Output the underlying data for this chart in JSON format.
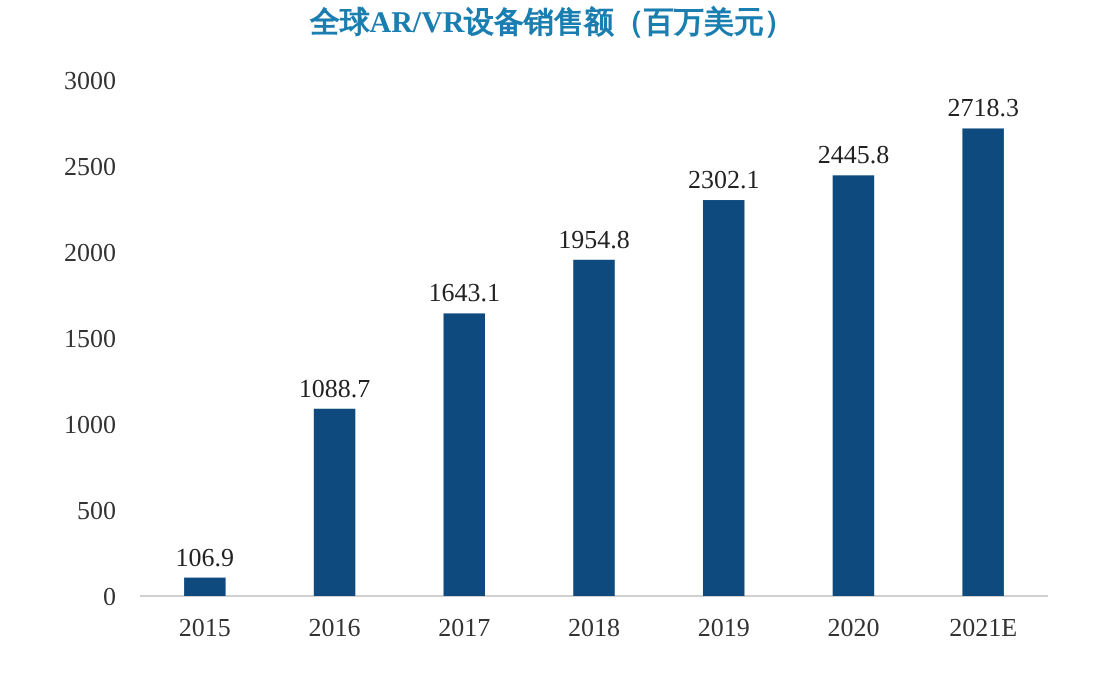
{
  "chart_data": {
    "type": "bar",
    "title": "全球AR/VR设备销售额（百万美元）",
    "categories": [
      "2015",
      "2016",
      "2017",
      "2018",
      "2019",
      "2020",
      "2021E"
    ],
    "values": [
      106.9,
      1088.7,
      1643.1,
      1954.8,
      2302.1,
      2445.8,
      2718.3
    ],
    "color": "#0e4a7e",
    "ylim": [
      0,
      3000
    ],
    "yticks": [
      0,
      500,
      1000,
      1500,
      2000,
      2500,
      3000
    ],
    "grid": false,
    "data_labels": true
  }
}
